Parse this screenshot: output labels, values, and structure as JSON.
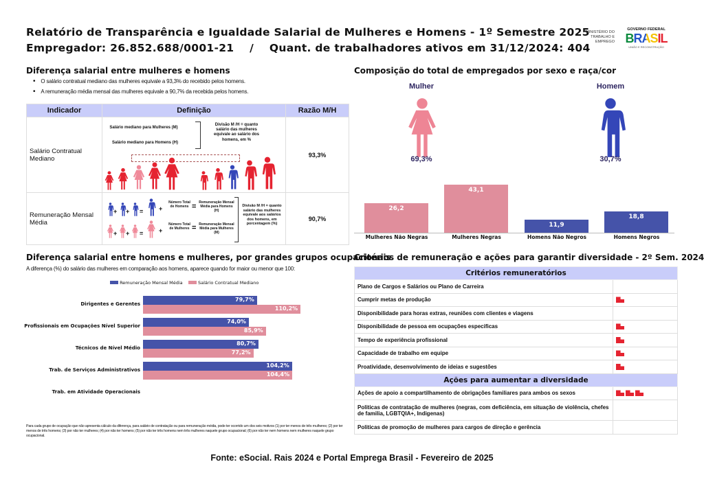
{
  "header": {
    "title": "Relatório de Transparência e Igualdade Salarial de Mulheres e Homens - 1º Semestre 2025",
    "subtitle": "Empregador: 26.852.688/0001-21    /    Quant. de trabalhadores ativos em 31/12/2024: 404",
    "logo_ministry": "MINISTÉRIO DO TRABALHO E EMPREGO",
    "logo_gov": "GOVERNO FEDERAL",
    "logo_brasil": "BRASIL",
    "logo_slogan": "UNIÃO E RECONSTRUÇÃO"
  },
  "diff": {
    "heading": "Diferença salarial entre mulheres e homens",
    "bullets": [
      "O salário contratual mediano das mulheres equivale a 93,3% do recebido pelos homens.",
      "A remuneração média mensal das mulheres equivale a 90,7% da recebida pelos homens."
    ],
    "table": {
      "headers": [
        "Indicador",
        "Definição",
        "Razão M/H"
      ],
      "rows": [
        {
          "indicator": "Salário Contratual Mediano",
          "def_m": "Salário mediano para Mulheres (M)",
          "def_h": "Salário mediano para Homens (H)",
          "def_div": "Divisão M /H = quanto salário das mulheres equivale ao salário dos homens, em %",
          "ratio": "93,3%"
        },
        {
          "indicator": "Remuneração Mensal Média",
          "num_h": "Número Total de Homens",
          "rem_h": "Remuneração Mensal Média para Homens (H)",
          "num_m": "Número Total de Mulheres",
          "rem_m": "Remuneração Mensal Média para Mulheres (M)",
          "def_div": "Divisão M /H = quanto salário das mulheres equivale aos salários dos homens, em porcentagem (%)",
          "ratio": "90,7%"
        }
      ]
    }
  },
  "composition": {
    "heading": "Composição do total de empregados por sexo e raça/cor",
    "women_label": "Mulher",
    "women_pct": "69,3%",
    "men_label": "Homem",
    "men_pct": "30,7%"
  },
  "groups": {
    "heading": "Diferença salarial entre homens e mulheres, por grandes grupos ocupacionais",
    "subtitle": "A diferença (%) do salário das mulheres em comparação aos homens, aparece quando for maior ou menor que 100:",
    "footnote": "Para cada grupo de ocupação que não apresenta cálculo da diferença, para salário de contratação ou para remuneração média, pode ter ocorrido um dos seis motivos (1) por ter menos de três mulheres; (2) por ter menos de três homens; (3) por não ter mulheres; (4) por não ter homens; (5) por não ter três homens nem três mulheres naquele grupo ocupacional; (6) por não ter nem homens nem mulheres naquele grupo ocupacional."
  },
  "chart_data": [
    {
      "type": "bar",
      "orientation": "vertical",
      "categories": [
        "Mulheres Não Negras",
        "Mulheres Negras",
        "Homens Não Negros",
        "Homens Negros"
      ],
      "values": [
        26.2,
        43.1,
        11.9,
        18.8
      ],
      "labels": [
        "26,2",
        "43,1",
        "11,9",
        "18,8"
      ],
      "colors": [
        "#e08e9c",
        "#e08e9c",
        "#4553a9",
        "#4553a9"
      ]
    },
    {
      "type": "bar",
      "orientation": "horizontal",
      "categories": [
        "Dirigentes e Gerentes",
        "Profissionais em Ocupações Nível Superior",
        "Técnicos de Nível Médio",
        "Trab. de Serviços Administrativos",
        "Trab. em Atividade Operacionais"
      ],
      "series": [
        {
          "name": "Remuneração Mensal Média",
          "color": "#4553a9",
          "values": [
            79.7,
            74.0,
            80.7,
            104.2,
            null
          ],
          "labels": [
            "79,7%",
            "74,0%",
            "80,7%",
            "104,2%",
            ""
          ]
        },
        {
          "name": "Salário Contratual Mediano",
          "color": "#e08e9c",
          "values": [
            110.2,
            85.9,
            77.2,
            104.4,
            null
          ],
          "labels": [
            "110,2%",
            "85,9%",
            "77,2%",
            "104,4%",
            ""
          ]
        }
      ],
      "legend": "top"
    }
  ],
  "criteria": {
    "heading": "Critérios de remuneração e ações para garantir diversidade - 2º Sem. 2024",
    "section1": "Critérios remuneratórios",
    "items1": [
      {
        "label": "Plano de Cargos e Salários ou Plano de Carreira",
        "marks": 0
      },
      {
        "label": "Cumprir metas de produção",
        "marks": 1
      },
      {
        "label": "Disponibilidade para horas extras, reuniões com clientes e viagens",
        "marks": 0
      },
      {
        "label": "Disponibilidade de pessoa em ocupações especificas",
        "marks": 1
      },
      {
        "label": "Tempo de experiência profissional",
        "marks": 1
      },
      {
        "label": "Capacidade de trabalho em equipe",
        "marks": 1
      },
      {
        "label": "Proatividade, desenvolvimento de ideias e sugestões",
        "marks": 1
      }
    ],
    "section2": "Ações para aumentar a diversidade",
    "items2": [
      {
        "label": "Ações de apoio a compartilhamento de obrigações familiares para ambos os sexos",
        "marks": 3
      },
      {
        "label": "Politicas de contratação de mulheres (negras, com deficiência, em situação de violência, chefes de familia, LGBTQIA+, Indigenas)",
        "marks": 0
      },
      {
        "label": "Politicas de promoção de mulheres para cargos de direção e gerência",
        "marks": 0
      }
    ],
    "mark_icon": "red-flag-icon",
    "mark_color": "#e52330"
  },
  "footer": {
    "source": "Fonte: eSocial. Rais 2024 e Portal Emprega Brasil - Fevereiro de 2025"
  }
}
